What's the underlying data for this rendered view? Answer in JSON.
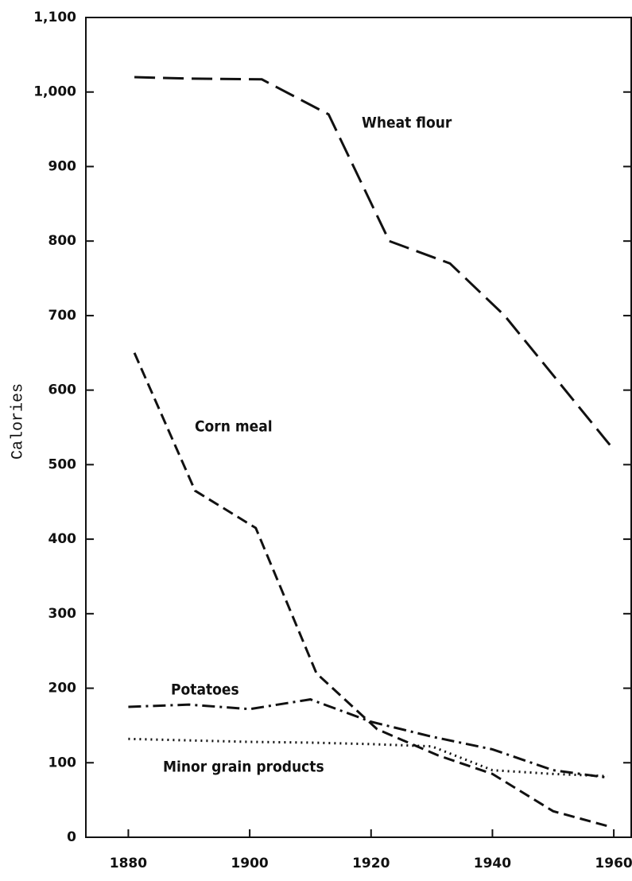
{
  "chart_data": {
    "type": "line",
    "y_label": "Calories",
    "xlim": [
      1873,
      1963
    ],
    "xticks": [
      1880,
      1900,
      1920,
      1940,
      1960
    ],
    "ylim": [
      0,
      1100
    ],
    "yticks": [
      0,
      100,
      200,
      300,
      400,
      500,
      600,
      700,
      800,
      900,
      {
        "value": 1000,
        "label": "1,000"
      },
      {
        "value": 1100,
        "label": "1,100"
      }
    ],
    "series": [
      {
        "name": "Wheat flour",
        "color": "#111",
        "style": "long-dash",
        "x": [
          1881,
          1890,
          1902,
          1913,
          1923,
          1933,
          1942,
          1951,
          1960
        ],
        "values": [
          1020,
          1018,
          1017,
          970,
          800,
          770,
          700,
          610,
          520
        ]
      },
      {
        "name": "Corn meal",
        "color": "#111",
        "style": "dash",
        "x": [
          1881,
          1891,
          1901,
          1911,
          1921,
          1931,
          1940,
          1950,
          1959
        ],
        "values": [
          650,
          465,
          415,
          220,
          145,
          110,
          85,
          35,
          15
        ]
      },
      {
        "name": "Potatoes",
        "color": "#111",
        "style": "dash-dot",
        "x": [
          1880,
          1890,
          1900,
          1910,
          1920,
          1930,
          1940,
          1950,
          1959
        ],
        "values": [
          175,
          178,
          172,
          185,
          155,
          135,
          118,
          90,
          80
        ]
      },
      {
        "name": "Minor grain products",
        "color": "#111",
        "style": "dot",
        "x": [
          1880,
          1890,
          1900,
          1910,
          1920,
          1930,
          1940,
          1950,
          1959
        ],
        "values": [
          132,
          130,
          128,
          127,
          125,
          122,
          90,
          85,
          82
        ]
      }
    ]
  }
}
